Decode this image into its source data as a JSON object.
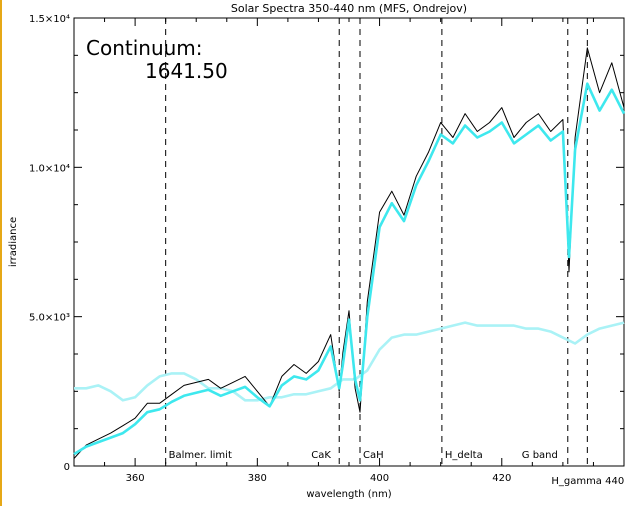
{
  "chart_data": {
    "type": "line",
    "title": "Solar Spectra 350-440 nm (MFS, Ondrejov)",
    "xlabel": "wavelength (nm)",
    "ylabel": "irradiance",
    "xlim": [
      350,
      440
    ],
    "ylim": [
      0,
      15000
    ],
    "x_ticks": [
      360,
      380,
      400,
      420,
      440
    ],
    "x_tick_labels": [
      "360",
      "380",
      "400",
      "420",
      ""
    ],
    "y_ticks": [
      0,
      5000,
      10000,
      15000
    ],
    "y_tick_labels": [
      "0",
      "5.0×10³",
      "1.0×10⁴",
      "1.5×10⁴"
    ],
    "grid": false,
    "continuum_label": "Continuum:",
    "continuum_value": "1641.50",
    "series": [
      {
        "color": "#000000",
        "x": [
          350,
          352,
          354,
          356,
          358,
          360,
          362,
          364,
          366,
          368,
          370,
          372,
          374,
          376,
          378,
          380,
          382,
          384,
          386,
          388,
          390,
          392,
          393.4,
          394,
          395,
          396,
          396.8,
          398,
          400,
          402,
          404,
          406,
          408,
          410,
          412,
          414,
          416,
          418,
          420,
          422,
          424,
          426,
          428,
          430,
          431,
          432,
          434,
          436,
          438,
          440
        ],
        "values": [
          250,
          700,
          900,
          1100,
          1350,
          1600,
          2100,
          2100,
          2400,
          2700,
          2800,
          2900,
          2600,
          2800,
          3000,
          2500,
          2000,
          3000,
          3400,
          3100,
          3500,
          4400,
          2500,
          3800,
          5200,
          2600,
          1800,
          5500,
          8500,
          9200,
          8400,
          9700,
          10500,
          11500,
          11000,
          11800,
          11200,
          11500,
          12000,
          11000,
          11500,
          11800,
          11200,
          11600,
          6500,
          11000,
          14000,
          12500,
          13500,
          12000
        ]
      },
      {
        "color": "#3ee8ee",
        "x": [
          350,
          352,
          354,
          356,
          358,
          360,
          362,
          364,
          366,
          368,
          370,
          372,
          374,
          376,
          378,
          380,
          382,
          384,
          386,
          388,
          390,
          392,
          393.4,
          394,
          395,
          396,
          396.8,
          398,
          400,
          402,
          404,
          406,
          408,
          410,
          412,
          414,
          416,
          418,
          420,
          422,
          424,
          426,
          428,
          430,
          431,
          432,
          434,
          436,
          438,
          440
        ],
        "values": [
          400,
          650,
          800,
          950,
          1100,
          1400,
          1800,
          1900,
          2150,
          2350,
          2450,
          2550,
          2350,
          2500,
          2650,
          2300,
          2000,
          2700,
          3000,
          2900,
          3200,
          4000,
          2600,
          3400,
          4900,
          2900,
          2200,
          5000,
          8000,
          8800,
          8200,
          9400,
          10200,
          11100,
          10800,
          11400,
          11000,
          11200,
          11500,
          10800,
          11100,
          11400,
          10900,
          11200,
          7000,
          10600,
          12800,
          11900,
          12600,
          11800
        ]
      },
      {
        "color": "#aaf2f6",
        "x": [
          350,
          352,
          354,
          356,
          358,
          360,
          362,
          364,
          366,
          368,
          370,
          372,
          374,
          376,
          378,
          380,
          382,
          384,
          386,
          388,
          390,
          392,
          394,
          396,
          398,
          400,
          402,
          404,
          406,
          408,
          410,
          412,
          414,
          416,
          418,
          420,
          422,
          424,
          426,
          428,
          430,
          432,
          434,
          436,
          438,
          440
        ],
        "values": [
          2600,
          2600,
          2700,
          2500,
          2200,
          2300,
          2700,
          3000,
          3100,
          3100,
          2900,
          2600,
          2600,
          2500,
          2200,
          2200,
          2300,
          2300,
          2400,
          2400,
          2500,
          2600,
          2900,
          2900,
          3200,
          3900,
          4300,
          4400,
          4400,
          4500,
          4600,
          4700,
          4800,
          4700,
          4700,
          4700,
          4700,
          4600,
          4600,
          4500,
          4300,
          4100,
          4400,
          4600,
          4700,
          4800
        ]
      }
    ],
    "annotations": [
      {
        "x": 365,
        "label": "Balmer. limit"
      },
      {
        "x": 393.4,
        "label": "CaK"
      },
      {
        "x": 396.8,
        "label": "CaH"
      },
      {
        "x": 410.2,
        "label": "H_delta"
      },
      {
        "x": 430.8,
        "label": "G band"
      },
      {
        "x": 434.0,
        "label": "H_gamma 440"
      }
    ]
  }
}
